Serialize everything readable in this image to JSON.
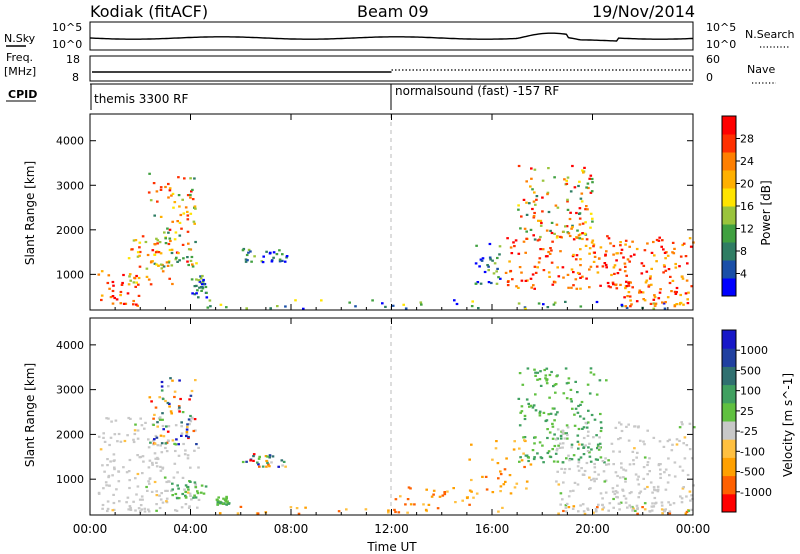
{
  "header": {
    "station": "Kodiak (fitACF)",
    "beam": "Beam 09",
    "date": "19/Nov/2014"
  },
  "panels": {
    "nsky": {
      "left_label": "N.Sky",
      "left_ticks": [
        "10^5",
        "10^0"
      ],
      "right_ticks": [
        "10^5",
        "10^0"
      ],
      "right_label": "N.Search"
    },
    "freq": {
      "left_label_1": "Freq.",
      "left_label_2": "[MHz]",
      "left_ticks": [
        "18",
        "8"
      ],
      "right_ticks": [
        "60",
        "0"
      ],
      "right_label": "Nave"
    },
    "cpid": {
      "left_label": "CPID",
      "segments": [
        "themis 3300 RF",
        "normalsound (fast) -157 RF"
      ]
    }
  },
  "chart_data": [
    {
      "type": "heatmap",
      "title": "",
      "variable": "Power",
      "ylabel": "Slant Range [km]",
      "xlabel": "",
      "x_unit": "hours UT",
      "xlim": [
        0,
        24
      ],
      "ylim": [
        200,
        4600
      ],
      "yticks": [
        1000,
        2000,
        3000,
        4000
      ],
      "colorbar": {
        "label": "Power [dB]",
        "ticks": [
          "28",
          "24",
          "20",
          "16",
          "12",
          "8",
          "4"
        ],
        "range": [
          0,
          32
        ],
        "colors": [
          "#0000ff",
          "#1a4fa8",
          "#2f7d63",
          "#40a040",
          "#9ac43c",
          "#ffe400",
          "#ffb000",
          "#ff7f00",
          "#ff3000",
          "#ff0000"
        ]
      },
      "regions": [
        {
          "t0": 0.3,
          "t1": 2.0,
          "r0": 300,
          "r1": 1100,
          "level": "high"
        },
        {
          "t0": 1.5,
          "t1": 3.3,
          "r0": 800,
          "r1": 1900,
          "level": "mid"
        },
        {
          "t0": 2.3,
          "t1": 4.2,
          "r0": 1200,
          "r1": 3300,
          "level": "mixed"
        },
        {
          "t0": 4.0,
          "t1": 4.6,
          "r0": 500,
          "r1": 1000,
          "level": "low"
        },
        {
          "t0": 6.0,
          "t1": 7.8,
          "r0": 1300,
          "r1": 1600,
          "level": "low"
        },
        {
          "t0": 4.5,
          "t1": 24.0,
          "r0": 250,
          "r1": 450,
          "level": "noise"
        },
        {
          "t0": 15.3,
          "t1": 16.3,
          "r0": 800,
          "r1": 1800,
          "level": "low"
        },
        {
          "t0": 16.5,
          "t1": 21.5,
          "r0": 700,
          "r1": 1900,
          "level": "high"
        },
        {
          "t0": 17.0,
          "t1": 20.0,
          "r0": 1800,
          "r1": 3500,
          "level": "mixed"
        },
        {
          "t0": 21.0,
          "t1": 24.0,
          "r0": 300,
          "r1": 1900,
          "level": "high"
        }
      ]
    },
    {
      "type": "heatmap",
      "title": "",
      "variable": "Velocity",
      "ylabel": "Slant Range [km]",
      "xlabel": "Time UT",
      "x_unit": "hours UT",
      "xlim": [
        0,
        24
      ],
      "ylim": [
        200,
        4600
      ],
      "yticks": [
        1000,
        2000,
        3000,
        4000
      ],
      "xticks": [
        "00:00",
        "04:00",
        "08:00",
        "12:00",
        "16:00",
        "20:00",
        "00:00"
      ],
      "colorbar": {
        "label": "Velocity [m s^-1]",
        "ticks": [
          "1000",
          "500",
          "100",
          "25",
          "-25",
          "-100",
          "-500",
          "-1000"
        ],
        "range": [
          -1200,
          1200
        ],
        "colors": [
          "#ff0000",
          "#ff6000",
          "#ffa000",
          "#ffc040",
          "#c8c8c8",
          "#60c040",
          "#40a060",
          "#307070",
          "#2040a0",
          "#1818c8"
        ]
      },
      "regions": [
        {
          "t0": 0.3,
          "t1": 4.3,
          "r0": 300,
          "r1": 2400,
          "level": "ground"
        },
        {
          "t0": 2.3,
          "t1": 4.2,
          "r0": 1800,
          "r1": 3300,
          "level": "mixed"
        },
        {
          "t0": 3.2,
          "t1": 4.6,
          "r0": 600,
          "r1": 1000,
          "level": "green"
        },
        {
          "t0": 5.0,
          "t1": 5.5,
          "r0": 450,
          "r1": 650,
          "level": "green"
        },
        {
          "t0": 6.0,
          "t1": 7.8,
          "r0": 1300,
          "r1": 1600,
          "level": "mixed"
        },
        {
          "t0": 4.5,
          "t1": 24.0,
          "r0": 250,
          "r1": 420,
          "level": "orange"
        },
        {
          "t0": 12.0,
          "t1": 15.5,
          "r0": 450,
          "r1": 850,
          "level": "orange"
        },
        {
          "t0": 15.0,
          "t1": 17.5,
          "r0": 700,
          "r1": 1900,
          "level": "orange"
        },
        {
          "t0": 17.0,
          "t1": 20.5,
          "r0": 1400,
          "r1": 3500,
          "level": "green"
        },
        {
          "t0": 18.5,
          "t1": 24.0,
          "r0": 300,
          "r1": 2300,
          "level": "ground"
        }
      ]
    }
  ]
}
